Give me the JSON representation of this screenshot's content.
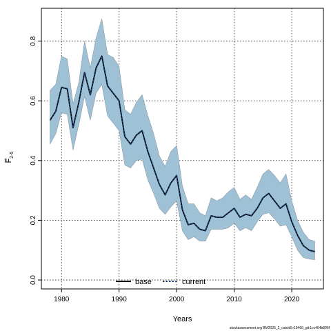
{
  "chart_data": {
    "type": "line",
    "xlabel": "Years",
    "ylabel": "F̅",
    "ylabel_subscript": "2-5",
    "xlim": [
      1976.5,
      2025.5
    ],
    "ylim": [
      -0.03,
      0.91
    ],
    "xticks": [
      1980,
      1990,
      2000,
      2010,
      2020
    ],
    "yticks": [
      0.0,
      0.2,
      0.4,
      0.6,
      0.8
    ],
    "grid": true,
    "legend_position": "bottom-center",
    "x": [
      1978,
      1979,
      1980,
      1981,
      1982,
      1983,
      1984,
      1985,
      1986,
      1987,
      1988,
      1989,
      1990,
      1991,
      1992,
      1993,
      1994,
      1995,
      1996,
      1997,
      1998,
      1999,
      2000,
      2001,
      2002,
      2003,
      2004,
      2005,
      2006,
      2007,
      2008,
      2009,
      2010,
      2011,
      2012,
      2013,
      2014,
      2015,
      2016,
      2017,
      2018,
      2019,
      2020,
      2021,
      2022,
      2023,
      2024
    ],
    "series": [
      {
        "name": "base",
        "style": "solid",
        "color": "#000000",
        "values": [
          0.535,
          0.565,
          0.645,
          0.64,
          0.51,
          0.595,
          0.695,
          0.62,
          0.71,
          0.75,
          0.65,
          0.625,
          0.6,
          0.48,
          0.455,
          0.485,
          0.5,
          0.43,
          0.375,
          0.32,
          0.285,
          0.325,
          0.35,
          0.235,
          0.185,
          0.19,
          0.17,
          0.165,
          0.215,
          0.21,
          0.21,
          0.225,
          0.24,
          0.21,
          0.22,
          0.215,
          0.24,
          0.275,
          0.29,
          0.265,
          0.24,
          0.255,
          0.195,
          0.15,
          0.115,
          0.1,
          0.095
        ]
      },
      {
        "name": "current",
        "style": "dotted",
        "color": "#1a3d6b",
        "values": [
          0.535,
          0.565,
          0.645,
          0.64,
          0.51,
          0.595,
          0.695,
          0.62,
          0.71,
          0.75,
          0.65,
          0.625,
          0.6,
          0.48,
          0.455,
          0.485,
          0.5,
          0.43,
          0.375,
          0.32,
          0.285,
          0.325,
          0.35,
          0.235,
          0.185,
          0.19,
          0.17,
          0.165,
          0.215,
          0.21,
          0.21,
          0.225,
          0.24,
          0.21,
          0.22,
          0.215,
          0.24,
          0.275,
          0.29,
          0.265,
          0.24,
          0.255,
          0.195,
          0.15,
          0.115,
          0.1,
          0.095
        ]
      }
    ],
    "band": {
      "color": "#9fc1d6",
      "upper": [
        0.635,
        0.655,
        0.75,
        0.74,
        0.59,
        0.66,
        0.8,
        0.71,
        0.81,
        0.875,
        0.755,
        0.745,
        0.715,
        0.57,
        0.555,
        0.595,
        0.62,
        0.55,
        0.49,
        0.415,
        0.38,
        0.43,
        0.45,
        0.315,
        0.255,
        0.255,
        0.225,
        0.215,
        0.275,
        0.265,
        0.275,
        0.295,
        0.31,
        0.27,
        0.285,
        0.27,
        0.31,
        0.355,
        0.37,
        0.35,
        0.325,
        0.355,
        0.265,
        0.2,
        0.16,
        0.135,
        0.13
      ],
      "lower": [
        0.455,
        0.49,
        0.56,
        0.555,
        0.435,
        0.52,
        0.615,
        0.535,
        0.625,
        0.655,
        0.55,
        0.525,
        0.5,
        0.385,
        0.375,
        0.4,
        0.405,
        0.335,
        0.29,
        0.24,
        0.22,
        0.245,
        0.265,
        0.165,
        0.135,
        0.145,
        0.13,
        0.13,
        0.17,
        0.17,
        0.17,
        0.175,
        0.19,
        0.165,
        0.175,
        0.165,
        0.195,
        0.22,
        0.225,
        0.205,
        0.18,
        0.185,
        0.145,
        0.1,
        0.075,
        0.07,
        0.068
      ]
    },
    "legend": [
      {
        "label": "base",
        "style": "solid"
      },
      {
        "label": "current",
        "style": "dotted"
      }
    ]
  },
  "footer_text": "stockassessment.org BM2026_2_catch8.r19469_git:1cc464b806f"
}
